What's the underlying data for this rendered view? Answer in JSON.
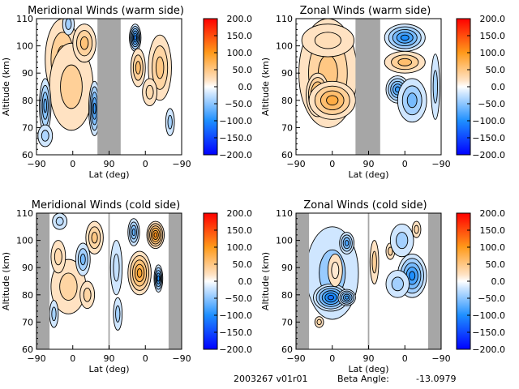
{
  "colorbar": {
    "ticks": [
      "200.0",
      "150.0",
      "100.0",
      "50.0",
      "0.0",
      "-50.0",
      "-100.0",
      "-150.0",
      "-200.0"
    ],
    "range": [
      -200,
      200
    ],
    "colors": {
      "min": "#0000ff",
      "neg": "#1e90ff",
      "light_neg": "#c6e2ff",
      "zero": "#ffffff",
      "light_pos": "#ffe4c4",
      "pos": "#ff9a20",
      "max": "#ff0000"
    }
  },
  "footer": {
    "date_version": "2003267 v01r01",
    "beta_label": "Beta Angle:",
    "beta_value": "-13.0979"
  },
  "gap_color": "#a6a6a6",
  "chart_data": [
    {
      "type": "heatmap",
      "title": "Meridional Winds (warm side)",
      "xlabel": "Lat (deg)",
      "ylabel": "Altitude (km)",
      "xticks": [
        "-90",
        "0",
        "90",
        "0",
        "-90"
      ],
      "yticks": [
        "60",
        "70",
        "80",
        "90",
        "100",
        "110"
      ],
      "ylim": [
        60,
        110
      ],
      "zlim": [
        -200,
        200
      ],
      "gaps": [
        [
          0.42,
          0.58
        ]
      ],
      "blobs": [
        {
          "x": 0.18,
          "y": 95,
          "w": 0.12,
          "h": 15,
          "v": 60
        },
        {
          "x": 0.33,
          "y": 81,
          "w": 0.1,
          "h": 6,
          "v": 90
        },
        {
          "x": 0.24,
          "y": 85,
          "w": 0.15,
          "h": 16,
          "v": 40
        },
        {
          "x": 0.33,
          "y": 101,
          "w": 0.08,
          "h": 7,
          "v": 55
        },
        {
          "x": 0.06,
          "y": 78,
          "w": 0.04,
          "h": 10,
          "v": -70
        },
        {
          "x": 0.4,
          "y": 77,
          "w": 0.04,
          "h": 10,
          "v": -90
        },
        {
          "x": 0.22,
          "y": 108,
          "w": 0.04,
          "h": 4,
          "v": -40
        },
        {
          "x": 0.06,
          "y": 67,
          "w": 0.05,
          "h": 4,
          "v": -35
        },
        {
          "x": 0.68,
          "y": 103,
          "w": 0.04,
          "h": 5,
          "v": -110
        },
        {
          "x": 0.7,
          "y": 92,
          "w": 0.05,
          "h": 7,
          "v": 60
        },
        {
          "x": 0.85,
          "y": 92,
          "w": 0.08,
          "h": 12,
          "v": 50
        },
        {
          "x": 0.78,
          "y": 83,
          "w": 0.05,
          "h": 5,
          "v": 30
        },
        {
          "x": 0.92,
          "y": 72,
          "w": 0.03,
          "h": 5,
          "v": -40
        }
      ]
    },
    {
      "type": "heatmap",
      "title": "Zonal Winds (warm side)",
      "xlabel": "Lat (deg)",
      "ylabel": "Altitude (km)",
      "xticks": [
        "-90",
        "0",
        "90",
        "0",
        "-90"
      ],
      "yticks": [
        "60",
        "70",
        "80",
        "90",
        "100",
        "110"
      ],
      "ylim": [
        60,
        110
      ],
      "zlim": [
        -200,
        200
      ],
      "gaps": [
        [
          0.41,
          0.58
        ]
      ],
      "blobs": [
        {
          "x": 0.22,
          "y": 90,
          "w": 0.2,
          "h": 20,
          "v": 50
        },
        {
          "x": 0.15,
          "y": 82,
          "w": 0.08,
          "h": 8,
          "v": 90
        },
        {
          "x": 0.33,
          "y": 80,
          "w": 0.06,
          "h": 5,
          "v": 130
        },
        {
          "x": 0.25,
          "y": 80,
          "w": 0.16,
          "h": 7,
          "v": 80
        },
        {
          "x": 0.22,
          "y": 102,
          "w": 0.18,
          "h": 6,
          "v": 25
        },
        {
          "x": 0.75,
          "y": 103,
          "w": 0.14,
          "h": 5,
          "v": -100
        },
        {
          "x": 0.75,
          "y": 94,
          "w": 0.14,
          "h": 4,
          "v": 60
        },
        {
          "x": 0.7,
          "y": 84,
          "w": 0.08,
          "h": 5,
          "v": -90
        },
        {
          "x": 0.8,
          "y": 80,
          "w": 0.1,
          "h": 8,
          "v": -60
        },
        {
          "x": 0.96,
          "y": 85,
          "w": 0.03,
          "h": 12,
          "v": -40
        }
      ]
    },
    {
      "type": "heatmap",
      "title": "Meridional Winds (cold side)",
      "xlabel": "Lat (deg)",
      "ylabel": "Altitude (km)",
      "xticks": [
        "-90",
        "0",
        "90",
        "0",
        "-90"
      ],
      "yticks": [
        "60",
        "70",
        "80",
        "90",
        "100",
        "110"
      ],
      "ylim": [
        60,
        110
      ],
      "zlim": [
        -200,
        200
      ],
      "gaps": [
        [
          0.0,
          0.09
        ],
        [
          0.495,
          0.505
        ],
        [
          0.91,
          1.0
        ]
      ],
      "blobs": [
        {
          "x": 0.4,
          "y": 101,
          "w": 0.06,
          "h": 6,
          "v": 50
        },
        {
          "x": 0.22,
          "y": 83,
          "w": 0.12,
          "h": 10,
          "v": 35
        },
        {
          "x": 0.15,
          "y": 94,
          "w": 0.05,
          "h": 6,
          "v": 30
        },
        {
          "x": 0.35,
          "y": 80,
          "w": 0.05,
          "h": 5,
          "v": 35
        },
        {
          "x": 0.32,
          "y": 93,
          "w": 0.05,
          "h": 6,
          "v": -60
        },
        {
          "x": 0.16,
          "y": 107,
          "w": 0.05,
          "h": 3,
          "v": -30
        },
        {
          "x": 0.12,
          "y": 73,
          "w": 0.03,
          "h": 5,
          "v": -40
        },
        {
          "x": 0.71,
          "y": 88,
          "w": 0.08,
          "h": 8,
          "v": 90
        },
        {
          "x": 0.82,
          "y": 102,
          "w": 0.06,
          "h": 5,
          "v": 110
        },
        {
          "x": 0.67,
          "y": 103,
          "w": 0.04,
          "h": 5,
          "v": -70
        },
        {
          "x": 0.84,
          "y": 86,
          "w": 0.03,
          "h": 5,
          "v": -100
        },
        {
          "x": 0.55,
          "y": 90,
          "w": 0.04,
          "h": 10,
          "v": -25
        },
        {
          "x": 0.56,
          "y": 73,
          "w": 0.03,
          "h": 6,
          "v": -40
        }
      ]
    },
    {
      "type": "heatmap",
      "title": "Zonal Winds (cold side)",
      "xlabel": "Lat (deg)",
      "ylabel": "Altitude (km)",
      "xticks": [
        "-90",
        "0",
        "90",
        "0",
        "-90"
      ],
      "yticks": [
        "60",
        "70",
        "80",
        "90",
        "100",
        "110"
      ],
      "ylim": [
        60,
        110
      ],
      "zlim": [
        -200,
        200
      ],
      "gaps": [
        [
          0.0,
          0.09
        ],
        [
          0.495,
          0.505
        ],
        [
          0.91,
          1.0
        ]
      ],
      "blobs": [
        {
          "x": 0.25,
          "y": 88,
          "w": 0.18,
          "h": 17,
          "v": -45
        },
        {
          "x": 0.24,
          "y": 79,
          "w": 0.12,
          "h": 5,
          "v": -120
        },
        {
          "x": 0.35,
          "y": 79,
          "w": 0.06,
          "h": 3,
          "v": -90
        },
        {
          "x": 0.35,
          "y": 99,
          "w": 0.05,
          "h": 4,
          "v": -80
        },
        {
          "x": 0.27,
          "y": 89,
          "w": 0.05,
          "h": 6,
          "v": 15
        },
        {
          "x": 0.16,
          "y": 70,
          "w": 0.03,
          "h": 2,
          "v": 35
        },
        {
          "x": 0.54,
          "y": 92,
          "w": 0.03,
          "h": 8,
          "v": 40
        },
        {
          "x": 0.65,
          "y": 96,
          "w": 0.03,
          "h": 3,
          "v": 35
        },
        {
          "x": 0.8,
          "y": 87,
          "w": 0.1,
          "h": 8,
          "v": -100
        },
        {
          "x": 0.7,
          "y": 84,
          "w": 0.08,
          "h": 5,
          "v": -40
        },
        {
          "x": 0.73,
          "y": 100,
          "w": 0.08,
          "h": 6,
          "v": -40
        },
        {
          "x": 0.83,
          "y": 104,
          "w": 0.03,
          "h": 3,
          "v": 30
        }
      ]
    }
  ]
}
